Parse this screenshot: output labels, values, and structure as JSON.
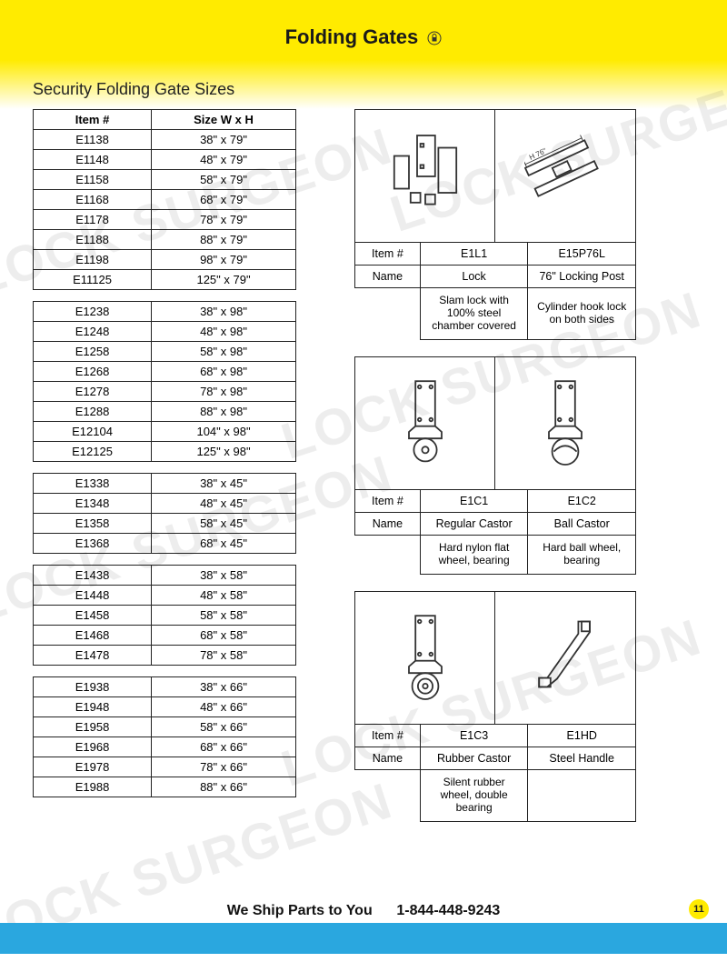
{
  "page": {
    "title": "Folding Gates",
    "subtitle": "Security Folding Gate Sizes",
    "footer_ship": "We Ship Parts to You",
    "footer_phone": "1-844-448-9243",
    "page_number": "11"
  },
  "colors": {
    "yellow": "#ffeb00",
    "blue": "#2aa7df",
    "border": "#222222",
    "text": "#1a1a1a",
    "watermark": "rgba(0,0,0,0.07)"
  },
  "size_table_headers": {
    "item": "Item #",
    "size": "Size W x H"
  },
  "size_groups": [
    [
      {
        "item": "E1138",
        "size": "38\" x 79\""
      },
      {
        "item": "E1148",
        "size": "48\" x 79\""
      },
      {
        "item": "E1158",
        "size": "58\" x 79\""
      },
      {
        "item": "E1168",
        "size": "68\" x 79\""
      },
      {
        "item": "E1178",
        "size": "78\" x 79\""
      },
      {
        "item": "E1188",
        "size": "88\" x 79\""
      },
      {
        "item": "E1198",
        "size": "98\" x 79\""
      },
      {
        "item": "E11125",
        "size": "125\" x 79\""
      }
    ],
    [
      {
        "item": "E1238",
        "size": "38\" x 98\""
      },
      {
        "item": "E1248",
        "size": "48\" x 98\""
      },
      {
        "item": "E1258",
        "size": "58\" x 98\""
      },
      {
        "item": "E1268",
        "size": "68\" x 98\""
      },
      {
        "item": "E1278",
        "size": "78\" x 98\""
      },
      {
        "item": "E1288",
        "size": "88\" x 98\""
      },
      {
        "item": "E12104",
        "size": "104\" x 98\""
      },
      {
        "item": "E12125",
        "size": "125\" x 98\""
      }
    ],
    [
      {
        "item": "E1338",
        "size": "38\" x 45\""
      },
      {
        "item": "E1348",
        "size": "48\" x 45\""
      },
      {
        "item": "E1358",
        "size": "58\" x 45\""
      },
      {
        "item": "E1368",
        "size": "68\" x 45\""
      }
    ],
    [
      {
        "item": "E1438",
        "size": "38\" x 58\""
      },
      {
        "item": "E1448",
        "size": "48\" x 58\""
      },
      {
        "item": "E1458",
        "size": "58\" x 58\""
      },
      {
        "item": "E1468",
        "size": "68\" x 58\""
      },
      {
        "item": "E1478",
        "size": "78\" x 58\""
      }
    ],
    [
      {
        "item": "E1938",
        "size": "38\" x 66\""
      },
      {
        "item": "E1948",
        "size": "48\" x 66\""
      },
      {
        "item": "E1958",
        "size": "58\" x 66\""
      },
      {
        "item": "E1968",
        "size": "68\" x 66\""
      },
      {
        "item": "E1978",
        "size": "78\" x 66\""
      },
      {
        "item": "E1988",
        "size": "88\" x 66\""
      }
    ]
  ],
  "part_labels": {
    "item": "Item #",
    "name": "Name"
  },
  "parts": [
    {
      "left": {
        "item": "E1L1",
        "name": "Lock",
        "desc": "Slam lock with 100% steel chamber covered",
        "icon": "lock-parts"
      },
      "right": {
        "item": "E15P76L",
        "name": "76\" Locking Post",
        "desc": "Cylinder hook lock on both sides",
        "icon": "locking-post"
      }
    },
    {
      "left": {
        "item": "E1C1",
        "name": "Regular Castor",
        "desc": "Hard nylon flat wheel, bearing",
        "icon": "castor-flat"
      },
      "right": {
        "item": "E1C2",
        "name": "Ball Castor",
        "desc": "Hard ball wheel, bearing",
        "icon": "castor-ball"
      }
    },
    {
      "left": {
        "item": "E1C3",
        "name": "Rubber Castor",
        "desc": "Silent rubber wheel, double bearing",
        "icon": "castor-rubber"
      },
      "right": {
        "item": "E1HD",
        "name": "Steel Handle",
        "desc": "",
        "icon": "steel-handle"
      }
    }
  ],
  "icons": {
    "lock-parts": "lock-parts",
    "locking-post": "locking-post",
    "castor-flat": "castor-flat",
    "castor-ball": "castor-ball",
    "castor-rubber": "castor-rubber",
    "steel-handle": "steel-handle"
  },
  "watermark_text": "LOCK SURGEON"
}
